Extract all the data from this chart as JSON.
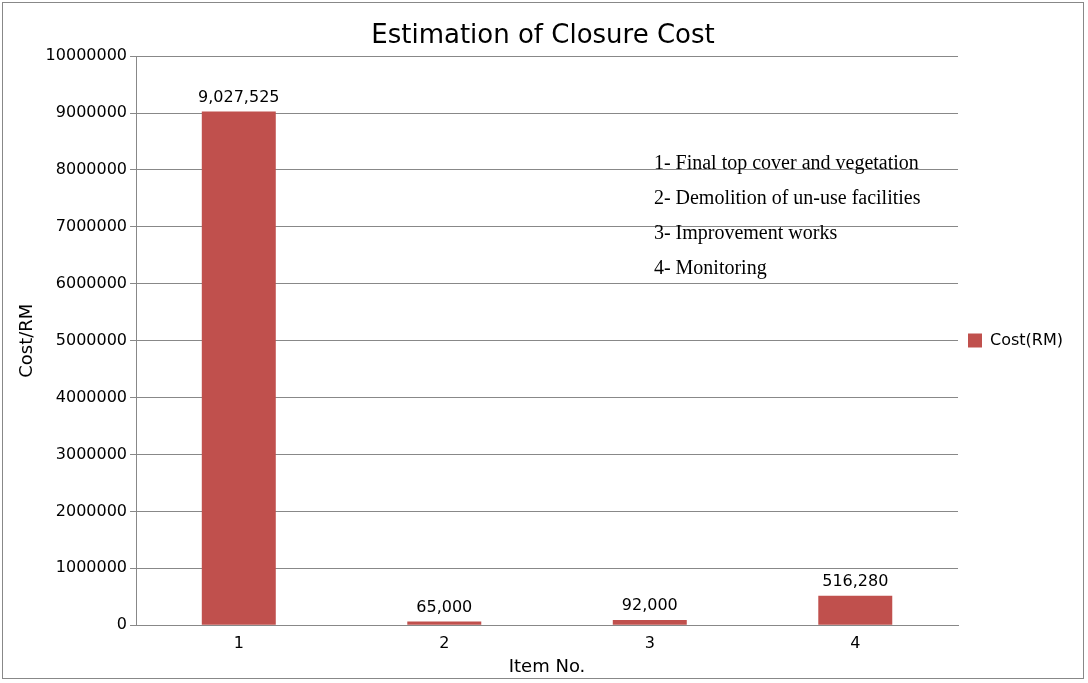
{
  "chart_data": {
    "type": "bar",
    "title": "Estimation of Closure Cost",
    "xlabel": "Item No.",
    "ylabel": "Cost/RM",
    "categories": [
      "1",
      "2",
      "3",
      "4"
    ],
    "series": [
      {
        "name": "Cost(RM)",
        "color": "#c0504d",
        "values": [
          9027525,
          65000,
          92000,
          516280
        ],
        "value_labels": [
          "9,027,525",
          "65,000",
          "92,000",
          "516,280"
        ]
      }
    ],
    "ylim": [
      0,
      10000000
    ],
    "yticks": [
      0,
      1000000,
      2000000,
      3000000,
      4000000,
      5000000,
      6000000,
      7000000,
      8000000,
      9000000,
      10000000
    ],
    "grid": "y",
    "legend": "right",
    "annotations": [
      "1- Final top cover and vegetation",
      "2- Demolition of un-use facilities",
      "3- Improvement works",
      "4- Monitoring"
    ]
  }
}
